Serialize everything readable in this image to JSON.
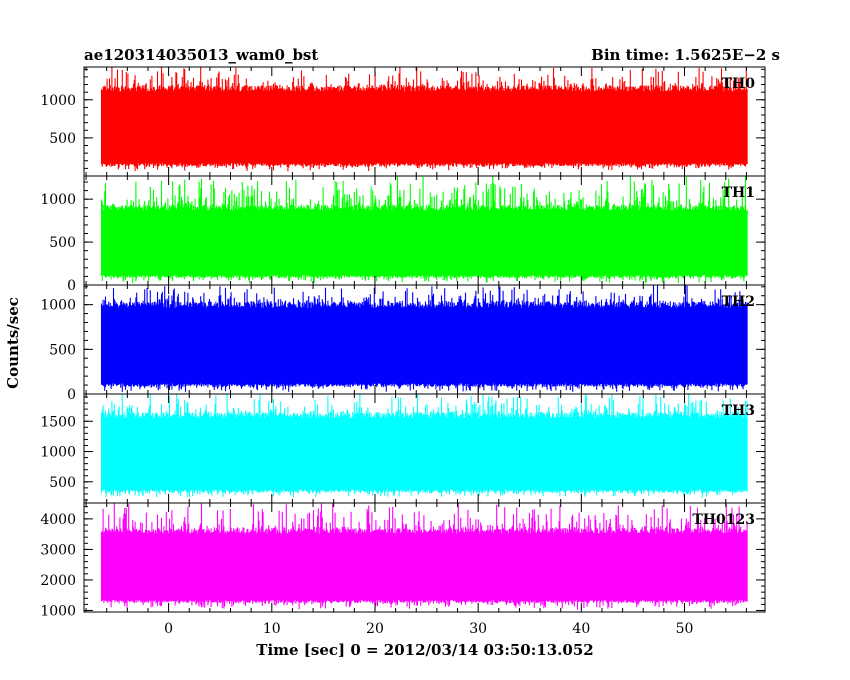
{
  "figure": {
    "title_left": "ae120314035013_wam0_bst",
    "title_right": "Bin time: 1.5625E−2 s",
    "xlabel": "Time [sec] 0 = 2012/03/14 03:50:13.052",
    "ylabel": "Counts/sec"
  },
  "chart_data": [
    {
      "type": "area",
      "series": [
        {
          "name": "TH0",
          "color": "#ff0000"
        }
      ],
      "xlim": [
        -8.2,
        57.8
      ],
      "ylim": [
        0,
        1430
      ],
      "yticks": [
        500,
        1000
      ],
      "x": [
        -6.5,
        56.1
      ],
      "band": {
        "typical_low": 150,
        "typical_high": 1150,
        "min": 80,
        "max": 1430
      },
      "grid": false
    },
    {
      "type": "area",
      "series": [
        {
          "name": "TH1",
          "color": "#00ff00"
        }
      ],
      "xlim": [
        -8.2,
        57.8
      ],
      "ylim": [
        0,
        1270
      ],
      "yticks": [
        0,
        500,
        1000
      ],
      "x": [
        -6.5,
        56.1
      ],
      "band": {
        "typical_low": 100,
        "typical_high": 900,
        "min": 30,
        "max": 1270
      },
      "grid": false
    },
    {
      "type": "area",
      "series": [
        {
          "name": "TH2",
          "color": "#0000ff"
        }
      ],
      "xlim": [
        -8.2,
        57.8
      ],
      "ylim": [
        0,
        1220
      ],
      "yticks": [
        0,
        500,
        1000
      ],
      "x": [
        -6.5,
        56.1
      ],
      "band": {
        "typical_low": 100,
        "typical_high": 1000,
        "min": 30,
        "max": 1220
      },
      "grid": false
    },
    {
      "type": "area",
      "series": [
        {
          "name": "TH3",
          "color": "#00ffff"
        }
      ],
      "xlim": [
        -8.2,
        57.8
      ],
      "ylim": [
        150,
        1950
      ],
      "yticks": [
        500,
        1000,
        1500
      ],
      "x": [
        -6.5,
        56.1
      ],
      "band": {
        "typical_low": 350,
        "typical_high": 1600,
        "min": 250,
        "max": 1950
      },
      "grid": false
    },
    {
      "type": "area",
      "series": [
        {
          "name": "TH0123",
          "color": "#ff00ff"
        }
      ],
      "xlim": [
        -8.2,
        57.8
      ],
      "ylim": [
        950,
        4520
      ],
      "yticks": [
        1000,
        2000,
        3000,
        4000
      ],
      "x": [
        -6.5,
        56.1
      ],
      "band": {
        "typical_low": 1300,
        "typical_high": 3600,
        "min": 1050,
        "max": 4520
      },
      "xticks": [
        0,
        10,
        20,
        30,
        40,
        50
      ],
      "grid": false
    }
  ]
}
